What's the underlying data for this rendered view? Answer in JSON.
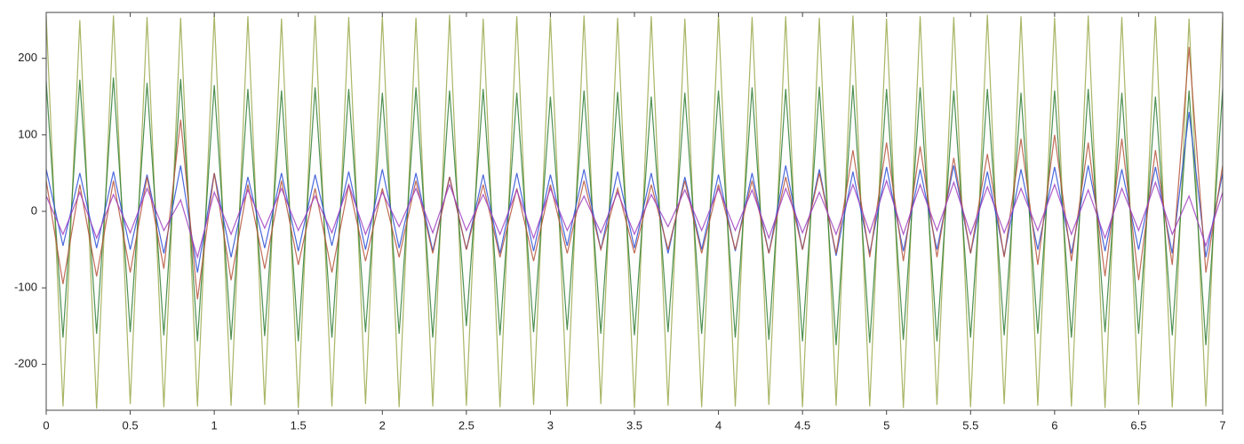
{
  "chart_data": {
    "type": "line",
    "x": [
      0,
      0.1,
      0.2,
      0.3,
      0.4,
      0.5,
      0.6,
      0.7,
      0.8,
      0.9,
      1,
      1.1,
      1.2,
      1.3,
      1.4,
      1.5,
      1.6,
      1.7,
      1.8,
      1.9,
      2,
      2.1,
      2.2,
      2.3,
      2.4,
      2.5,
      2.6,
      2.7,
      2.8,
      2.9,
      3,
      3.1,
      3.2,
      3.3,
      3.4,
      3.5,
      3.6,
      3.7,
      3.8,
      3.9,
      4,
      4.1,
      4.2,
      4.3,
      4.4,
      4.5,
      4.6,
      4.7,
      4.8,
      4.9,
      5,
      5.1,
      5.2,
      5.3,
      5.4,
      5.5,
      5.6,
      5.7,
      5.8,
      5.9,
      6,
      6.1,
      6.2,
      6.3,
      6.4,
      6.5,
      6.6,
      6.7,
      6.8,
      6.9,
      7
    ],
    "series": [
      {
        "color": "#9aa84a",
        "values": [
          255,
          -255,
          250,
          -258,
          256,
          -252,
          254,
          -256,
          253,
          -255,
          257,
          -254,
          255,
          -253,
          252,
          -257,
          256,
          -255,
          254,
          -252,
          255,
          -256,
          253,
          -255,
          257,
          -254,
          252,
          -256,
          255,
          -253,
          254,
          -255,
          256,
          -252,
          253,
          -257,
          255,
          -254,
          252,
          -256,
          257,
          -255,
          254,
          -253,
          255,
          -256,
          253,
          -254,
          256,
          -255,
          252,
          -257,
          255,
          -253,
          254,
          -256,
          257,
          -252,
          255,
          -254,
          253,
          -255,
          256,
          -257,
          254,
          -253,
          255,
          -256,
          252,
          -255,
          254
        ]
      },
      {
        "color": "#2e7d32",
        "values": [
          170,
          -165,
          172,
          -160,
          175,
          -158,
          168,
          -162,
          173,
          -170,
          165,
          -168,
          160,
          -163,
          158,
          -170,
          162,
          -165,
          160,
          -158,
          155,
          -160,
          162,
          -165,
          158,
          -150,
          160,
          -162,
          155,
          -158,
          150,
          -155,
          158,
          -160,
          156,
          -162,
          150,
          -158,
          155,
          -160,
          158,
          -165,
          162,
          -168,
          160,
          -170,
          163,
          -175,
          165,
          -172,
          160,
          -168,
          162,
          -170,
          158,
          -165,
          160,
          -162,
          155,
          -160,
          158,
          -165,
          160,
          -158,
          155,
          -160,
          150,
          -162,
          158,
          -175,
          160
        ]
      },
      {
        "color": "#2a4fd6",
        "values": [
          55,
          -45,
          50,
          -48,
          52,
          -50,
          48,
          -55,
          60,
          -80,
          50,
          -60,
          45,
          -48,
          50,
          -52,
          48,
          -45,
          52,
          -50,
          55,
          -48,
          50,
          -52,
          45,
          -50,
          48,
          -55,
          50,
          -52,
          48,
          -45,
          55,
          -50,
          52,
          -48,
          50,
          -55,
          45,
          -50,
          48,
          -52,
          50,
          -55,
          60,
          -50,
          55,
          -58,
          52,
          -55,
          58,
          -52,
          55,
          -50,
          60,
          -55,
          52,
          -58,
          55,
          -50,
          58,
          -55,
          60,
          -52,
          55,
          -50,
          58,
          -55,
          130,
          -60,
          50
        ]
      },
      {
        "color": "#b5533a",
        "values": [
          40,
          -95,
          35,
          -85,
          40,
          -80,
          45,
          -75,
          120,
          -115,
          50,
          -90,
          35,
          -75,
          40,
          -70,
          30,
          -80,
          35,
          -65,
          30,
          -60,
          40,
          -55,
          45,
          -50,
          35,
          -60,
          30,
          -65,
          35,
          -55,
          40,
          -50,
          30,
          -55,
          35,
          -50,
          40,
          -55,
          35,
          -50,
          40,
          -55,
          45,
          -50,
          50,
          -55,
          80,
          -60,
          90,
          -65,
          85,
          -60,
          70,
          -55,
          75,
          -60,
          95,
          -70,
          100,
          -65,
          90,
          -85,
          95,
          -90,
          80,
          -70,
          215,
          -80,
          60
        ]
      },
      {
        "color": "#a03fc0",
        "values": [
          20,
          -30,
          25,
          -35,
          22,
          -28,
          30,
          -25,
          15,
          -60,
          25,
          -30,
          28,
          -22,
          30,
          -25,
          20,
          -28,
          35,
          -30,
          25,
          -20,
          30,
          -28,
          35,
          -25,
          22,
          -30,
          28,
          -35,
          30,
          -25,
          20,
          -28,
          25,
          -30,
          22,
          -20,
          28,
          -25,
          30,
          -25,
          28,
          -35,
          30,
          -28,
          25,
          -30,
          35,
          -28,
          40,
          -30,
          35,
          -25,
          38,
          -30,
          32,
          -28,
          30,
          -25,
          35,
          -30,
          28,
          -35,
          30,
          -25,
          38,
          -30,
          20,
          -45,
          25
        ]
      }
    ],
    "xlim": [
      0,
      7
    ],
    "xticks": [
      0,
      0.5,
      1,
      1.5,
      2,
      2.5,
      3,
      3.5,
      4,
      4.5,
      5,
      5.5,
      6,
      6.5,
      7
    ],
    "ylim": [
      -260,
      260
    ],
    "yticks": [
      -200,
      -100,
      0,
      100,
      200
    ],
    "grid": false
  }
}
